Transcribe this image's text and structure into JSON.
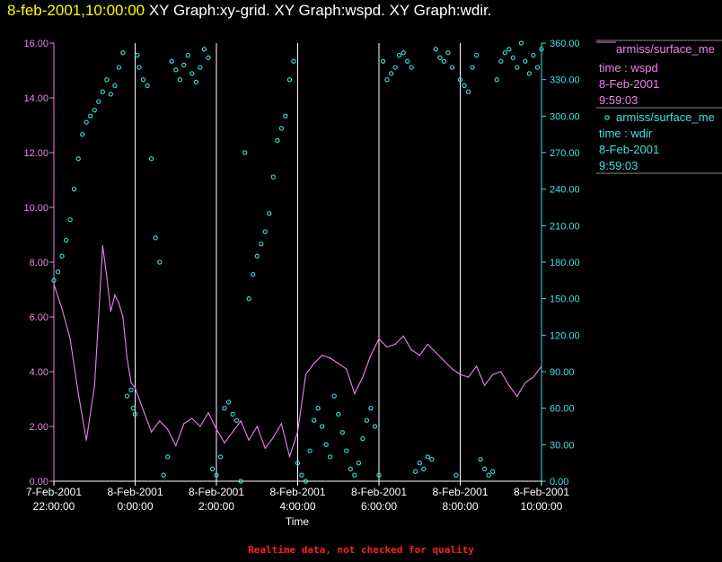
{
  "header": {
    "timestamp": "8-feb-2001,10:00:00",
    "graphs": "  XY Graph:xy-grid.  XY Graph:wspd.  XY Graph:wdir."
  },
  "footer": "Realtime data, not checked for quality",
  "colors": {
    "wspd": "#ee82ee",
    "wdir": "#40e0e0",
    "grid": "#ffffff",
    "title": "#ffff00",
    "footer": "#ff2020"
  },
  "legend": [
    {
      "name": "armiss/surface_me",
      "line1": "time : wspd",
      "line2": "8-Feb-2001",
      "line3": "9:59:03",
      "marker": "line"
    },
    {
      "name": "armiss/surface_me",
      "line1": "time : wdir",
      "line2": "8-Feb-2001",
      "line3": "9:59:03",
      "marker": "circle"
    }
  ],
  "chart_data": {
    "type": "scatter",
    "xlabel": "Time",
    "x_ticks": [
      {
        "hour": 22,
        "date": "7-Feb-2001",
        "time": "22:00:00"
      },
      {
        "hour": 24,
        "date": "8-Feb-2001",
        "time": "0:00:00"
      },
      {
        "hour": 26,
        "date": "8-Feb-2001",
        "time": "2:00:00"
      },
      {
        "hour": 28,
        "date": "8-Feb-2001",
        "time": "4:00:00"
      },
      {
        "hour": 30,
        "date": "8-Feb-2001",
        "time": "6:00:00"
      },
      {
        "hour": 32,
        "date": "8-Feb-2001",
        "time": "8:00:00"
      },
      {
        "hour": 34,
        "date": "8-Feb-2001",
        "time": "10:00:00"
      }
    ],
    "xlim": [
      22,
      34
    ],
    "y_left": {
      "lim": [
        0,
        16
      ],
      "ticks": [
        "0.00",
        "2.00",
        "4.00",
        "6.00",
        "8.00",
        "10.00",
        "12.00",
        "14.00",
        "16.00"
      ]
    },
    "y_right": {
      "lim": [
        0,
        360
      ],
      "ticks": [
        "0.00",
        "30.00",
        "60.00",
        "90.00",
        "120.00",
        "150.00",
        "180.00",
        "210.00",
        "240.00",
        "270.00",
        "300.00",
        "330.00",
        "360.00"
      ]
    },
    "grid": "vertical",
    "series": [
      {
        "name": "armiss/surface_me time : wspd",
        "axis": "left",
        "style": "line",
        "x": [
          22.0,
          22.2,
          22.4,
          22.6,
          22.8,
          23.0,
          23.1,
          23.2,
          23.3,
          23.4,
          23.5,
          23.6,
          23.7,
          23.8,
          23.9,
          24.0,
          24.2,
          24.4,
          24.6,
          24.8,
          25.0,
          25.2,
          25.4,
          25.6,
          25.8,
          26.0,
          26.2,
          26.4,
          26.6,
          26.8,
          27.0,
          27.2,
          27.4,
          27.6,
          27.8,
          28.0,
          28.2,
          28.4,
          28.6,
          28.8,
          29.0,
          29.2,
          29.4,
          29.6,
          29.8,
          30.0,
          30.2,
          30.4,
          30.6,
          30.8,
          31.0,
          31.2,
          31.4,
          31.6,
          31.8,
          32.0,
          32.2,
          32.4,
          32.6,
          32.8,
          33.0,
          33.2,
          33.4,
          33.6,
          33.8,
          34.0
        ],
        "y": [
          7.2,
          6.3,
          5.2,
          3.2,
          1.5,
          3.5,
          6.0,
          8.6,
          7.5,
          6.2,
          6.8,
          6.5,
          6.0,
          4.5,
          3.6,
          3.4,
          2.6,
          1.8,
          2.2,
          1.9,
          1.3,
          2.1,
          2.3,
          2.0,
          2.5,
          1.9,
          1.4,
          1.8,
          2.2,
          1.5,
          2.0,
          1.2,
          1.6,
          2.1,
          0.9,
          1.8,
          3.9,
          4.3,
          4.6,
          4.5,
          4.3,
          4.1,
          3.2,
          3.8,
          4.6,
          5.2,
          4.9,
          5.0,
          5.3,
          4.8,
          4.6,
          5.0,
          4.7,
          4.4,
          4.1,
          3.9,
          3.8,
          4.2,
          3.5,
          3.9,
          4.0,
          3.5,
          3.1,
          3.6,
          3.8,
          4.2
        ]
      },
      {
        "name": "armiss/surface_me time : wdir",
        "axis": "right",
        "style": "markers",
        "x": [
          22.0,
          22.1,
          22.2,
          22.3,
          22.4,
          22.5,
          22.6,
          22.7,
          22.8,
          22.9,
          23.0,
          23.1,
          23.2,
          23.3,
          23.4,
          23.5,
          23.6,
          23.7,
          23.8,
          23.9,
          23.95,
          24.0,
          24.05,
          24.1,
          24.2,
          24.3,
          24.4,
          24.5,
          24.6,
          24.7,
          24.8,
          24.9,
          25.0,
          25.1,
          25.2,
          25.3,
          25.4,
          25.5,
          25.6,
          25.7,
          25.8,
          25.9,
          26.0,
          26.1,
          26.2,
          26.3,
          26.4,
          26.5,
          26.6,
          26.7,
          26.8,
          26.9,
          27.0,
          27.1,
          27.2,
          27.3,
          27.4,
          27.5,
          27.6,
          27.7,
          27.8,
          27.9,
          28.0,
          28.1,
          28.2,
          28.3,
          28.4,
          28.5,
          28.6,
          28.7,
          28.8,
          28.9,
          29.0,
          29.1,
          29.2,
          29.3,
          29.4,
          29.5,
          29.6,
          29.7,
          29.8,
          29.9,
          30.0,
          30.1,
          30.2,
          30.3,
          30.4,
          30.5,
          30.6,
          30.7,
          30.8,
          30.9,
          31.0,
          31.1,
          31.2,
          31.3,
          31.4,
          31.5,
          31.6,
          31.7,
          31.8,
          31.9,
          32.0,
          32.1,
          32.2,
          32.3,
          32.4,
          32.5,
          32.6,
          32.7,
          32.8,
          32.9,
          33.0,
          33.1,
          33.2,
          33.3,
          33.4,
          33.5,
          33.6,
          33.7,
          33.8,
          33.9,
          34.0
        ],
        "y": [
          165,
          172,
          185,
          198,
          215,
          240,
          265,
          285,
          295,
          300,
          305,
          312,
          320,
          330,
          318,
          325,
          340,
          352,
          70,
          75,
          60,
          55,
          350,
          340,
          330,
          325,
          265,
          200,
          180,
          5,
          20,
          345,
          338,
          330,
          342,
          350,
          335,
          328,
          340,
          355,
          348,
          10,
          5,
          20,
          60,
          65,
          55,
          50,
          0,
          270,
          150,
          170,
          185,
          195,
          205,
          220,
          250,
          280,
          290,
          300,
          330,
          345,
          15,
          5,
          0,
          25,
          50,
          60,
          45,
          30,
          20,
          70,
          55,
          40,
          25,
          10,
          5,
          15,
          35,
          50,
          60,
          45,
          5,
          345,
          330,
          335,
          340,
          350,
          352,
          345,
          340,
          8,
          15,
          10,
          20,
          18,
          355,
          348,
          345,
          352,
          340,
          5,
          330,
          325,
          320,
          340,
          350,
          18,
          10,
          5,
          8,
          330,
          345,
          352,
          355,
          348,
          340,
          360,
          345,
          335,
          350,
          340,
          355
        ]
      }
    ]
  }
}
